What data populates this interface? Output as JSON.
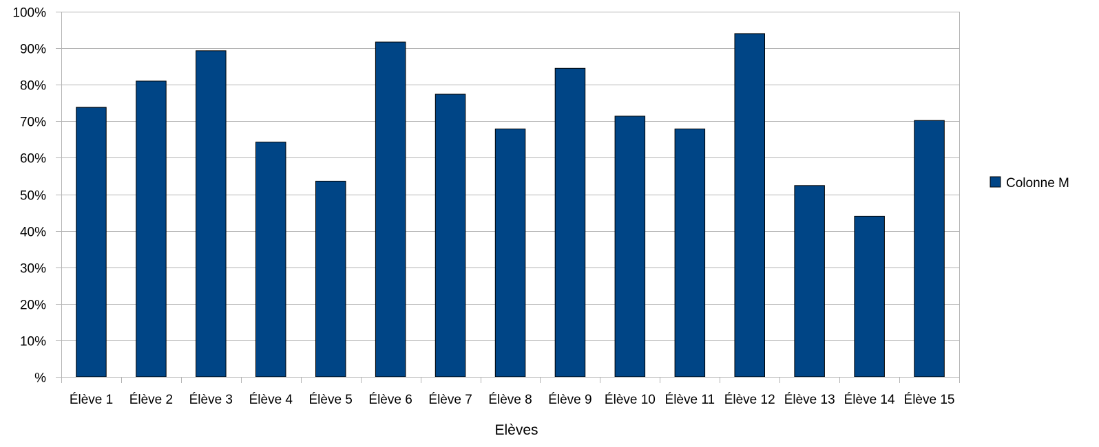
{
  "chart_data": {
    "type": "bar",
    "title": "",
    "xlabel": "Elèves",
    "ylabel": "",
    "categories": [
      "Élève 1",
      "Élève 2",
      "Élève 3",
      "Élève 4",
      "Élève 5",
      "Élève 6",
      "Élève 7",
      "Élève 8",
      "Élève 9",
      "Élève 10",
      "Élève 11",
      "Élève 12",
      "Élève 13",
      "Élève 14",
      "Élève 15"
    ],
    "series": [
      {
        "name": "Colonne M",
        "values": [
          0.738,
          0.81,
          0.893,
          0.643,
          0.536,
          0.917,
          0.774,
          0.679,
          0.845,
          0.714,
          0.679,
          0.94,
          0.524,
          0.44,
          0.702
        ],
        "color": "#004586"
      }
    ],
    "ylim": [
      0,
      1
    ],
    "yticks": [
      0,
      0.1,
      0.2,
      0.3,
      0.4,
      0.5,
      0.6,
      0.7,
      0.8,
      0.9,
      1
    ],
    "ytick_labels": [
      "%",
      "10%",
      "20%",
      "30%",
      "40%",
      "50%",
      "60%",
      "70%",
      "80%",
      "90%",
      "100%"
    ],
    "grid": true,
    "legend": "right",
    "grid_color": "#b3b3b3",
    "axis_color": "#b3b3b3"
  }
}
